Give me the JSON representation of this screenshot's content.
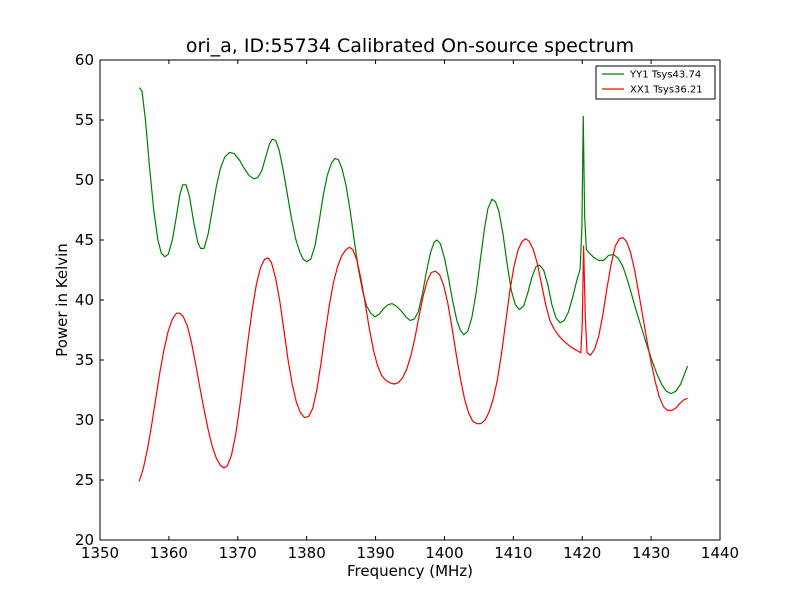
{
  "chart_data": {
    "type": "line",
    "title": "ori_a, ID:55734 Calibrated On-source spectrum",
    "xlabel": "Frequency (MHz)",
    "ylabel": "Power in Kelvin",
    "xlim": [
      1350,
      1440
    ],
    "ylim": [
      20,
      60
    ],
    "xticks": [
      "1350",
      "1360",
      "1370",
      "1380",
      "1390",
      "1400",
      "1410",
      "1420",
      "1430",
      "1440"
    ],
    "yticks": [
      "20",
      "25",
      "30",
      "35",
      "40",
      "45",
      "50",
      "55",
      "60"
    ],
    "grid": false,
    "legend_position": "top-right",
    "series": [
      {
        "name": "YY1 Tsys43.74",
        "color": "#008000",
        "points": [
          [
            1355.7,
            57.7
          ],
          [
            1356.1,
            57.4
          ],
          [
            1356.6,
            55.0
          ],
          [
            1357.2,
            51.0
          ],
          [
            1357.8,
            47.5
          ],
          [
            1358.4,
            45.0
          ],
          [
            1358.9,
            43.9
          ],
          [
            1359.4,
            43.6
          ],
          [
            1359.9,
            43.8
          ],
          [
            1360.5,
            45.0
          ],
          [
            1361.1,
            47.0
          ],
          [
            1361.6,
            48.8
          ],
          [
            1362.0,
            49.6
          ],
          [
            1362.5,
            49.6
          ],
          [
            1363.0,
            48.6
          ],
          [
            1363.6,
            46.5
          ],
          [
            1364.2,
            44.8
          ],
          [
            1364.6,
            44.3
          ],
          [
            1365.1,
            44.3
          ],
          [
            1365.7,
            45.5
          ],
          [
            1366.3,
            47.5
          ],
          [
            1366.9,
            49.5
          ],
          [
            1367.5,
            51.0
          ],
          [
            1368.1,
            51.9
          ],
          [
            1368.8,
            52.3
          ],
          [
            1369.5,
            52.2
          ],
          [
            1370.2,
            51.7
          ],
          [
            1370.9,
            51.0
          ],
          [
            1371.6,
            50.4
          ],
          [
            1372.3,
            50.1
          ],
          [
            1372.9,
            50.2
          ],
          [
            1373.5,
            50.8
          ],
          [
            1374.1,
            52.0
          ],
          [
            1374.6,
            53.0
          ],
          [
            1375.0,
            53.4
          ],
          [
            1375.5,
            53.3
          ],
          [
            1376.0,
            52.5
          ],
          [
            1376.6,
            50.8
          ],
          [
            1377.2,
            48.8
          ],
          [
            1377.8,
            46.8
          ],
          [
            1378.4,
            45.1
          ],
          [
            1379.0,
            44.0
          ],
          [
            1379.5,
            43.4
          ],
          [
            1380.0,
            43.2
          ],
          [
            1380.6,
            43.4
          ],
          [
            1381.2,
            44.5
          ],
          [
            1381.8,
            46.5
          ],
          [
            1382.4,
            48.7
          ],
          [
            1383.0,
            50.4
          ],
          [
            1383.6,
            51.4
          ],
          [
            1384.1,
            51.8
          ],
          [
            1384.6,
            51.7
          ],
          [
            1385.1,
            51.0
          ],
          [
            1385.7,
            49.6
          ],
          [
            1386.3,
            47.5
          ],
          [
            1386.9,
            45.0
          ],
          [
            1387.5,
            42.6
          ],
          [
            1388.1,
            40.8
          ],
          [
            1388.7,
            39.5
          ],
          [
            1389.3,
            38.9
          ],
          [
            1389.9,
            38.6
          ],
          [
            1390.5,
            38.8
          ],
          [
            1391.2,
            39.3
          ],
          [
            1391.8,
            39.6
          ],
          [
            1392.4,
            39.7
          ],
          [
            1393.0,
            39.5
          ],
          [
            1393.7,
            39.1
          ],
          [
            1394.4,
            38.6
          ],
          [
            1395.0,
            38.3
          ],
          [
            1395.6,
            38.4
          ],
          [
            1396.2,
            39.0
          ],
          [
            1396.8,
            40.5
          ],
          [
            1397.4,
            42.4
          ],
          [
            1398.0,
            44.0
          ],
          [
            1398.5,
            44.8
          ],
          [
            1398.9,
            45.0
          ],
          [
            1399.4,
            44.7
          ],
          [
            1400.0,
            43.5
          ],
          [
            1400.6,
            41.8
          ],
          [
            1401.2,
            39.9
          ],
          [
            1401.8,
            38.3
          ],
          [
            1402.3,
            37.5
          ],
          [
            1402.8,
            37.1
          ],
          [
            1403.4,
            37.4
          ],
          [
            1404.0,
            38.6
          ],
          [
            1404.6,
            40.6
          ],
          [
            1405.2,
            43.3
          ],
          [
            1405.8,
            45.9
          ],
          [
            1406.3,
            47.6
          ],
          [
            1406.9,
            48.4
          ],
          [
            1407.4,
            48.2
          ],
          [
            1407.9,
            47.4
          ],
          [
            1408.5,
            45.5
          ],
          [
            1409.1,
            43.0
          ],
          [
            1409.7,
            40.8
          ],
          [
            1410.3,
            39.6
          ],
          [
            1410.9,
            39.2
          ],
          [
            1411.5,
            39.5
          ],
          [
            1412.1,
            40.6
          ],
          [
            1412.7,
            41.9
          ],
          [
            1413.3,
            42.8
          ],
          [
            1413.8,
            42.9
          ],
          [
            1414.4,
            42.5
          ],
          [
            1415.0,
            41.3
          ],
          [
            1415.6,
            39.6
          ],
          [
            1416.2,
            38.5
          ],
          [
            1416.8,
            38.1
          ],
          [
            1417.4,
            38.3
          ],
          [
            1418.0,
            39.0
          ],
          [
            1418.6,
            40.2
          ],
          [
            1419.2,
            41.6
          ],
          [
            1419.7,
            42.6
          ],
          [
            1419.95,
            46.0
          ],
          [
            1420.15,
            55.3
          ],
          [
            1420.35,
            47.0
          ],
          [
            1420.6,
            44.2
          ],
          [
            1421.2,
            43.8
          ],
          [
            1421.8,
            43.5
          ],
          [
            1422.4,
            43.3
          ],
          [
            1423.1,
            43.3
          ],
          [
            1423.8,
            43.7
          ],
          [
            1424.5,
            43.8
          ],
          [
            1425.2,
            43.5
          ],
          [
            1425.9,
            42.8
          ],
          [
            1426.6,
            41.6
          ],
          [
            1427.3,
            40.2
          ],
          [
            1428.0,
            38.8
          ],
          [
            1428.7,
            37.5
          ],
          [
            1429.4,
            36.2
          ],
          [
            1430.1,
            35.0
          ],
          [
            1430.8,
            33.9
          ],
          [
            1431.5,
            33.0
          ],
          [
            1432.2,
            32.4
          ],
          [
            1432.9,
            32.2
          ],
          [
            1433.6,
            32.4
          ],
          [
            1434.3,
            33.0
          ],
          [
            1434.9,
            33.9
          ],
          [
            1435.3,
            34.5
          ]
        ]
      },
      {
        "name": "XX1 Tsys36.21",
        "color": "#ff0000",
        "points": [
          [
            1355.7,
            24.9
          ],
          [
            1356.3,
            26.0
          ],
          [
            1356.9,
            27.6
          ],
          [
            1357.5,
            29.6
          ],
          [
            1358.1,
            31.8
          ],
          [
            1358.7,
            34.0
          ],
          [
            1359.3,
            35.9
          ],
          [
            1359.9,
            37.4
          ],
          [
            1360.5,
            38.4
          ],
          [
            1361.1,
            38.9
          ],
          [
            1361.6,
            38.9
          ],
          [
            1362.1,
            38.6
          ],
          [
            1362.7,
            37.8
          ],
          [
            1363.3,
            36.4
          ],
          [
            1363.9,
            34.6
          ],
          [
            1364.5,
            32.7
          ],
          [
            1365.1,
            30.9
          ],
          [
            1365.7,
            29.2
          ],
          [
            1366.3,
            27.8
          ],
          [
            1366.9,
            26.8
          ],
          [
            1367.5,
            26.2
          ],
          [
            1368.0,
            26.0
          ],
          [
            1368.5,
            26.2
          ],
          [
            1369.1,
            27.1
          ],
          [
            1369.7,
            28.8
          ],
          [
            1370.3,
            31.2
          ],
          [
            1370.9,
            33.9
          ],
          [
            1371.5,
            36.7
          ],
          [
            1372.1,
            39.2
          ],
          [
            1372.7,
            41.3
          ],
          [
            1373.3,
            42.7
          ],
          [
            1373.9,
            43.4
          ],
          [
            1374.4,
            43.5
          ],
          [
            1374.9,
            43.1
          ],
          [
            1375.5,
            41.8
          ],
          [
            1376.1,
            39.9
          ],
          [
            1376.7,
            37.5
          ],
          [
            1377.3,
            35.0
          ],
          [
            1377.9,
            33.0
          ],
          [
            1378.5,
            31.5
          ],
          [
            1379.1,
            30.6
          ],
          [
            1379.7,
            30.2
          ],
          [
            1380.3,
            30.3
          ],
          [
            1380.9,
            31.0
          ],
          [
            1381.5,
            32.6
          ],
          [
            1382.1,
            34.8
          ],
          [
            1382.7,
            37.3
          ],
          [
            1383.3,
            39.6
          ],
          [
            1383.9,
            41.5
          ],
          [
            1384.5,
            42.8
          ],
          [
            1385.1,
            43.7
          ],
          [
            1385.7,
            44.2
          ],
          [
            1386.2,
            44.4
          ],
          [
            1386.7,
            44.2
          ],
          [
            1387.3,
            43.3
          ],
          [
            1387.9,
            41.7
          ],
          [
            1388.5,
            39.7
          ],
          [
            1389.1,
            37.6
          ],
          [
            1389.7,
            35.8
          ],
          [
            1390.3,
            34.5
          ],
          [
            1390.9,
            33.7
          ],
          [
            1391.5,
            33.3
          ],
          [
            1392.1,
            33.1
          ],
          [
            1392.7,
            33.0
          ],
          [
            1393.3,
            33.1
          ],
          [
            1393.9,
            33.5
          ],
          [
            1394.5,
            34.2
          ],
          [
            1395.1,
            35.3
          ],
          [
            1395.7,
            36.8
          ],
          [
            1396.3,
            38.6
          ],
          [
            1396.9,
            40.3
          ],
          [
            1397.5,
            41.6
          ],
          [
            1398.1,
            42.3
          ],
          [
            1398.7,
            42.4
          ],
          [
            1399.3,
            42.1
          ],
          [
            1399.9,
            41.2
          ],
          [
            1400.5,
            39.7
          ],
          [
            1401.1,
            37.7
          ],
          [
            1401.7,
            35.5
          ],
          [
            1402.3,
            33.5
          ],
          [
            1402.9,
            31.8
          ],
          [
            1403.5,
            30.6
          ],
          [
            1404.1,
            29.9
          ],
          [
            1404.7,
            29.7
          ],
          [
            1405.3,
            29.7
          ],
          [
            1405.9,
            30.0
          ],
          [
            1406.5,
            30.7
          ],
          [
            1407.1,
            31.8
          ],
          [
            1407.7,
            33.4
          ],
          [
            1408.3,
            35.6
          ],
          [
            1408.9,
            38.2
          ],
          [
            1409.5,
            40.8
          ],
          [
            1410.1,
            42.8
          ],
          [
            1410.7,
            44.2
          ],
          [
            1411.3,
            44.9
          ],
          [
            1411.8,
            45.1
          ],
          [
            1412.3,
            44.9
          ],
          [
            1412.9,
            44.2
          ],
          [
            1413.5,
            43.0
          ],
          [
            1414.1,
            41.3
          ],
          [
            1414.7,
            39.6
          ],
          [
            1415.3,
            38.3
          ],
          [
            1415.9,
            37.6
          ],
          [
            1416.5,
            37.1
          ],
          [
            1417.1,
            36.7
          ],
          [
            1417.7,
            36.4
          ],
          [
            1418.3,
            36.1
          ],
          [
            1418.9,
            35.9
          ],
          [
            1419.5,
            35.7
          ],
          [
            1419.8,
            35.6
          ],
          [
            1420.0,
            38.0
          ],
          [
            1420.2,
            44.5
          ],
          [
            1420.45,
            38.5
          ],
          [
            1420.7,
            35.6
          ],
          [
            1421.2,
            35.4
          ],
          [
            1421.8,
            35.9
          ],
          [
            1422.4,
            37.0
          ],
          [
            1423.0,
            38.8
          ],
          [
            1423.6,
            41.0
          ],
          [
            1424.2,
            43.0
          ],
          [
            1424.8,
            44.5
          ],
          [
            1425.4,
            45.1
          ],
          [
            1425.9,
            45.2
          ],
          [
            1426.4,
            44.9
          ],
          [
            1427.0,
            44.0
          ],
          [
            1427.6,
            42.5
          ],
          [
            1428.2,
            40.6
          ],
          [
            1428.8,
            38.6
          ],
          [
            1429.4,
            36.6
          ],
          [
            1430.0,
            34.8
          ],
          [
            1430.6,
            33.2
          ],
          [
            1431.2,
            31.9
          ],
          [
            1431.8,
            31.1
          ],
          [
            1432.4,
            30.8
          ],
          [
            1433.0,
            30.8
          ],
          [
            1433.6,
            31.0
          ],
          [
            1434.2,
            31.4
          ],
          [
            1434.8,
            31.7
          ],
          [
            1435.3,
            31.8
          ]
        ]
      }
    ]
  }
}
